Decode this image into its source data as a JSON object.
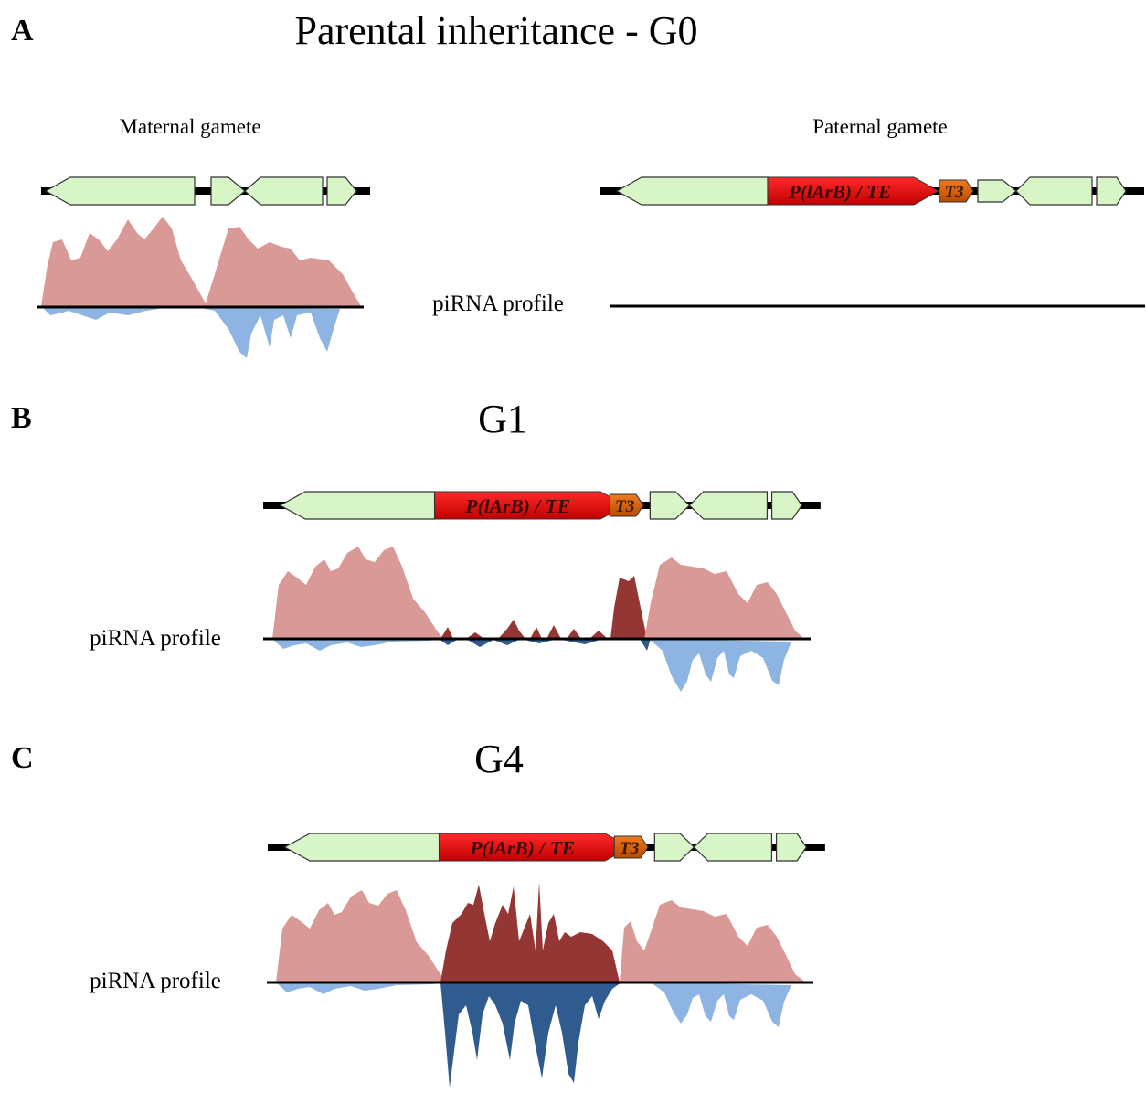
{
  "panels": [
    {
      "label": "A",
      "title": "Parental inheritance - G0",
      "maternal_label": "Maternal gamete",
      "paternal_label": "Paternal gamete",
      "profile_label": "piRNA profile",
      "te_label": "P(lArB) / TE",
      "t3_label": "T3"
    },
    {
      "label": "B",
      "title": "G1",
      "profile_label": "piRNA profile",
      "te_label": "P(lArB) / TE",
      "t3_label": "T3"
    },
    {
      "label": "C",
      "title": "G4",
      "profile_label": "piRNA profile",
      "te_label": "P(lArB) / TE",
      "t3_label": "T3"
    }
  ]
}
